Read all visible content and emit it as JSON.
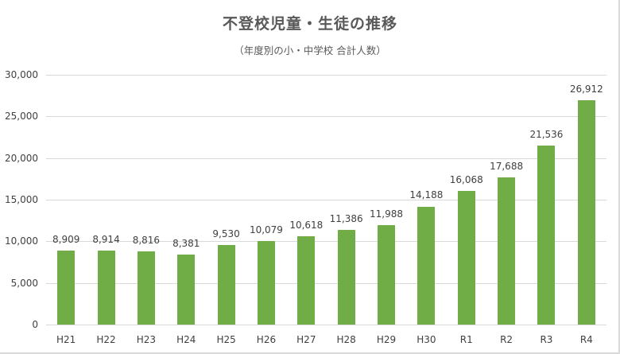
{
  "chart_data": {
    "type": "bar",
    "title": "不登校児童・生徒の推移",
    "subtitle": "（年度別の小・中学校 合計人数）",
    "xlabel": "",
    "ylabel": "",
    "categories": [
      "H21",
      "H22",
      "H23",
      "H24",
      "H25",
      "H26",
      "H27",
      "H28",
      "H29",
      "H30",
      "R1",
      "R2",
      "R3",
      "R4"
    ],
    "values": [
      8909,
      8914,
      8816,
      8381,
      9530,
      10079,
      10618,
      11386,
      11988,
      14188,
      16068,
      17688,
      21536,
      26912
    ],
    "value_labels": [
      "8,909",
      "8,914",
      "8,816",
      "8,381",
      "9,530",
      "10,079",
      "10,618",
      "11,386",
      "11,988",
      "14,188",
      "16,068",
      "17,688",
      "21,536",
      "26,912"
    ],
    "ylim": [
      0,
      30000
    ],
    "yticks": [
      0,
      5000,
      10000,
      15000,
      20000,
      25000,
      30000
    ],
    "ytick_labels": [
      "0",
      "5,000",
      "10,000",
      "15,000",
      "20,000",
      "25,000",
      "30,000"
    ],
    "grid": true,
    "legend": null,
    "colors": {
      "bar": "#70ad47",
      "grid": "#d9d9d9",
      "text": "#404040"
    }
  }
}
